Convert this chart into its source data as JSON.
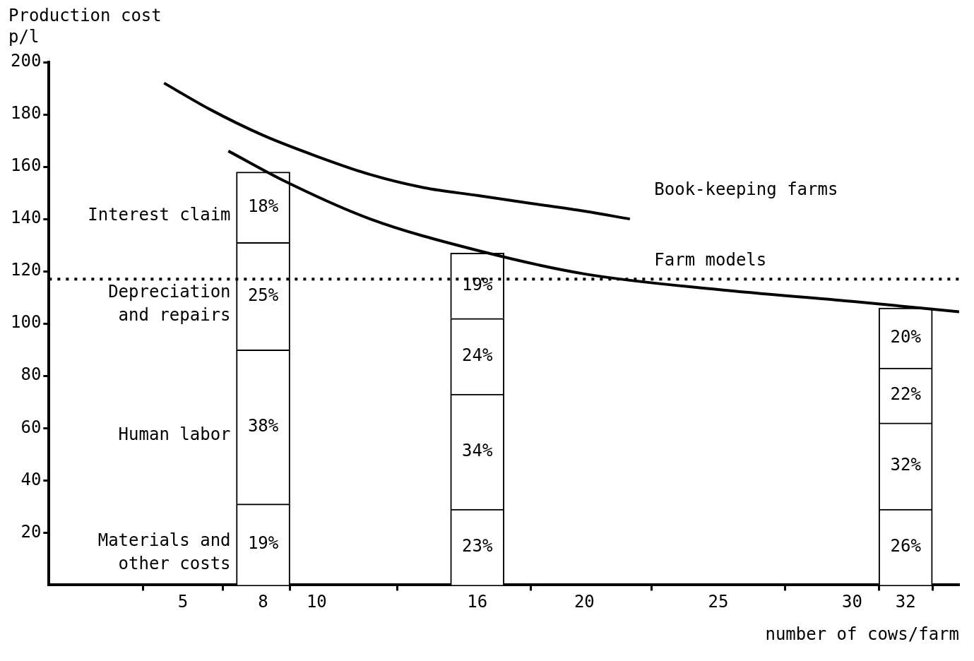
{
  "chart_data": {
    "type": "bar",
    "stacked": true,
    "x": [
      8,
      16,
      32
    ],
    "xlabel": "number of cows/farm",
    "ylabel": "Production cost p/l",
    "xlim": [
      0,
      34
    ],
    "xticks": [
      5,
      8,
      10,
      16,
      20,
      25,
      30,
      32
    ],
    "ylim": [
      0,
      200
    ],
    "yticks": [
      20,
      40,
      60,
      80,
      100,
      120,
      140,
      160,
      180,
      200
    ],
    "grid": false,
    "legend": false,
    "marker": "none",
    "ref_lines": [
      {
        "axis": "y",
        "value": 117,
        "line_style": "dotted",
        "color": "#000000"
      }
    ],
    "annotations": [
      "19%",
      "38%",
      "25%",
      "18%",
      "23%",
      "34%",
      "24%",
      "19%",
      "26%",
      "32%",
      "22%",
      "20%"
    ],
    "series": [
      {
        "name": "Materials and other costs",
        "color": "#ffffff",
        "values": [
          31,
          29,
          29
        ]
      },
      {
        "name": "Human labor",
        "color": "#ffffff",
        "values": [
          59,
          44,
          33
        ]
      },
      {
        "name": "Depreciation and repairs",
        "color": "#ffffff",
        "values": [
          41,
          29,
          21
        ]
      },
      {
        "name": "Interest claim",
        "color": "#ffffff",
        "values": [
          27,
          25,
          23
        ]
      },
      {
        "name": "Book-keeping farms",
        "type": "line",
        "color": "#000000",
        "x": [
          4.3,
          6,
          8,
          10,
          12,
          14,
          16,
          18,
          20,
          21.7
        ],
        "values": [
          192,
          182,
          172,
          164,
          157,
          152,
          149,
          146,
          143,
          140
        ]
      },
      {
        "name": "Farm models",
        "type": "line",
        "color": "#000000",
        "x": [
          6.7,
          8.9,
          12,
          16,
          20,
          25,
          30,
          34
        ],
        "values": [
          166,
          154,
          140,
          128,
          119,
          113,
          108.5,
          104.5
        ]
      }
    ]
  }
}
